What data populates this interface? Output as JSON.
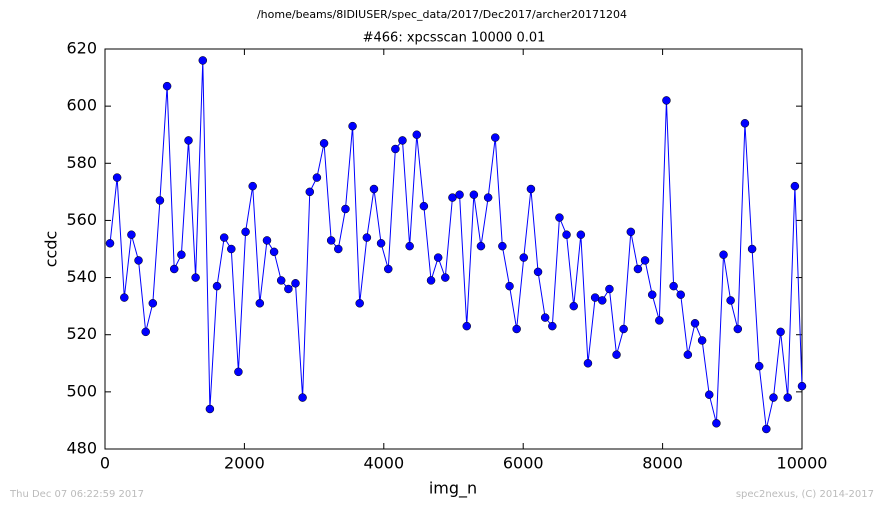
{
  "chart_data": {
    "type": "line",
    "header": "/home/beams/8IDIUSER/spec_data/2017/Dec2017/archer20171204",
    "title": "#466: xpcsscan 10000 0.01",
    "xlabel": "img_n",
    "ylabel": "ccdc",
    "footer_left": "Thu Dec 07 06:22:59 2017",
    "footer_right": "spec2nexus, (C) 2014-2017",
    "xlim": [
      0,
      10000
    ],
    "xticks": [
      0,
      2000,
      4000,
      6000,
      8000,
      10000
    ],
    "ylim": [
      480,
      620
    ],
    "yticks": [
      480,
      500,
      520,
      540,
      560,
      580,
      600,
      620
    ],
    "x": [
      72,
      174,
      277,
      379,
      481,
      584,
      686,
      788,
      891,
      993,
      1096,
      1198,
      1300,
      1403,
      1505,
      1607,
      1710,
      1812,
      1914,
      2017,
      2119,
      2221,
      2324,
      2426,
      2528,
      2631,
      2733,
      2835,
      2938,
      3040,
      3143,
      3245,
      3347,
      3450,
      3552,
      3654,
      3757,
      3859,
      3961,
      4064,
      4166,
      4268,
      4371,
      4473,
      4575,
      4678,
      4780,
      4882,
      4985,
      5087,
      5190,
      5292,
      5394,
      5497,
      5599,
      5701,
      5804,
      5906,
      6008,
      6111,
      6213,
      6315,
      6418,
      6520,
      6622,
      6725,
      6827,
      6929,
      7032,
      7134,
      7237,
      7339,
      7441,
      7544,
      7646,
      7748,
      7851,
      7953,
      8055,
      8158,
      8260,
      8362,
      8465,
      8567,
      8669,
      8772,
      8874,
      8976,
      9079,
      9181,
      9284,
      9386,
      9488,
      9591,
      9693,
      9795,
      9898,
      10000
    ],
    "series": [
      {
        "color": "#0000ff",
        "values": [
          552,
          575,
          533,
          555,
          546,
          521,
          531,
          567,
          607,
          543,
          548,
          588,
          540,
          616,
          494,
          537,
          554,
          550,
          507,
          556,
          572,
          531,
          553,
          549,
          539,
          536,
          538,
          498,
          570,
          575,
          587,
          553,
          550,
          564,
          593,
          531,
          554,
          571,
          552,
          543,
          585,
          588,
          551,
          590,
          565,
          539,
          547,
          540,
          568,
          569,
          523,
          569,
          551,
          568,
          589,
          551,
          537,
          522,
          547,
          571,
          542,
          526,
          523,
          561,
          555,
          530,
          555,
          510,
          533,
          532,
          536,
          513,
          522,
          556,
          543,
          546,
          534,
          525,
          602,
          537,
          534,
          513,
          524,
          518,
          499,
          489,
          548,
          532,
          522,
          594,
          550,
          509,
          487,
          498,
          521,
          498,
          572,
          502
        ]
      }
    ]
  }
}
